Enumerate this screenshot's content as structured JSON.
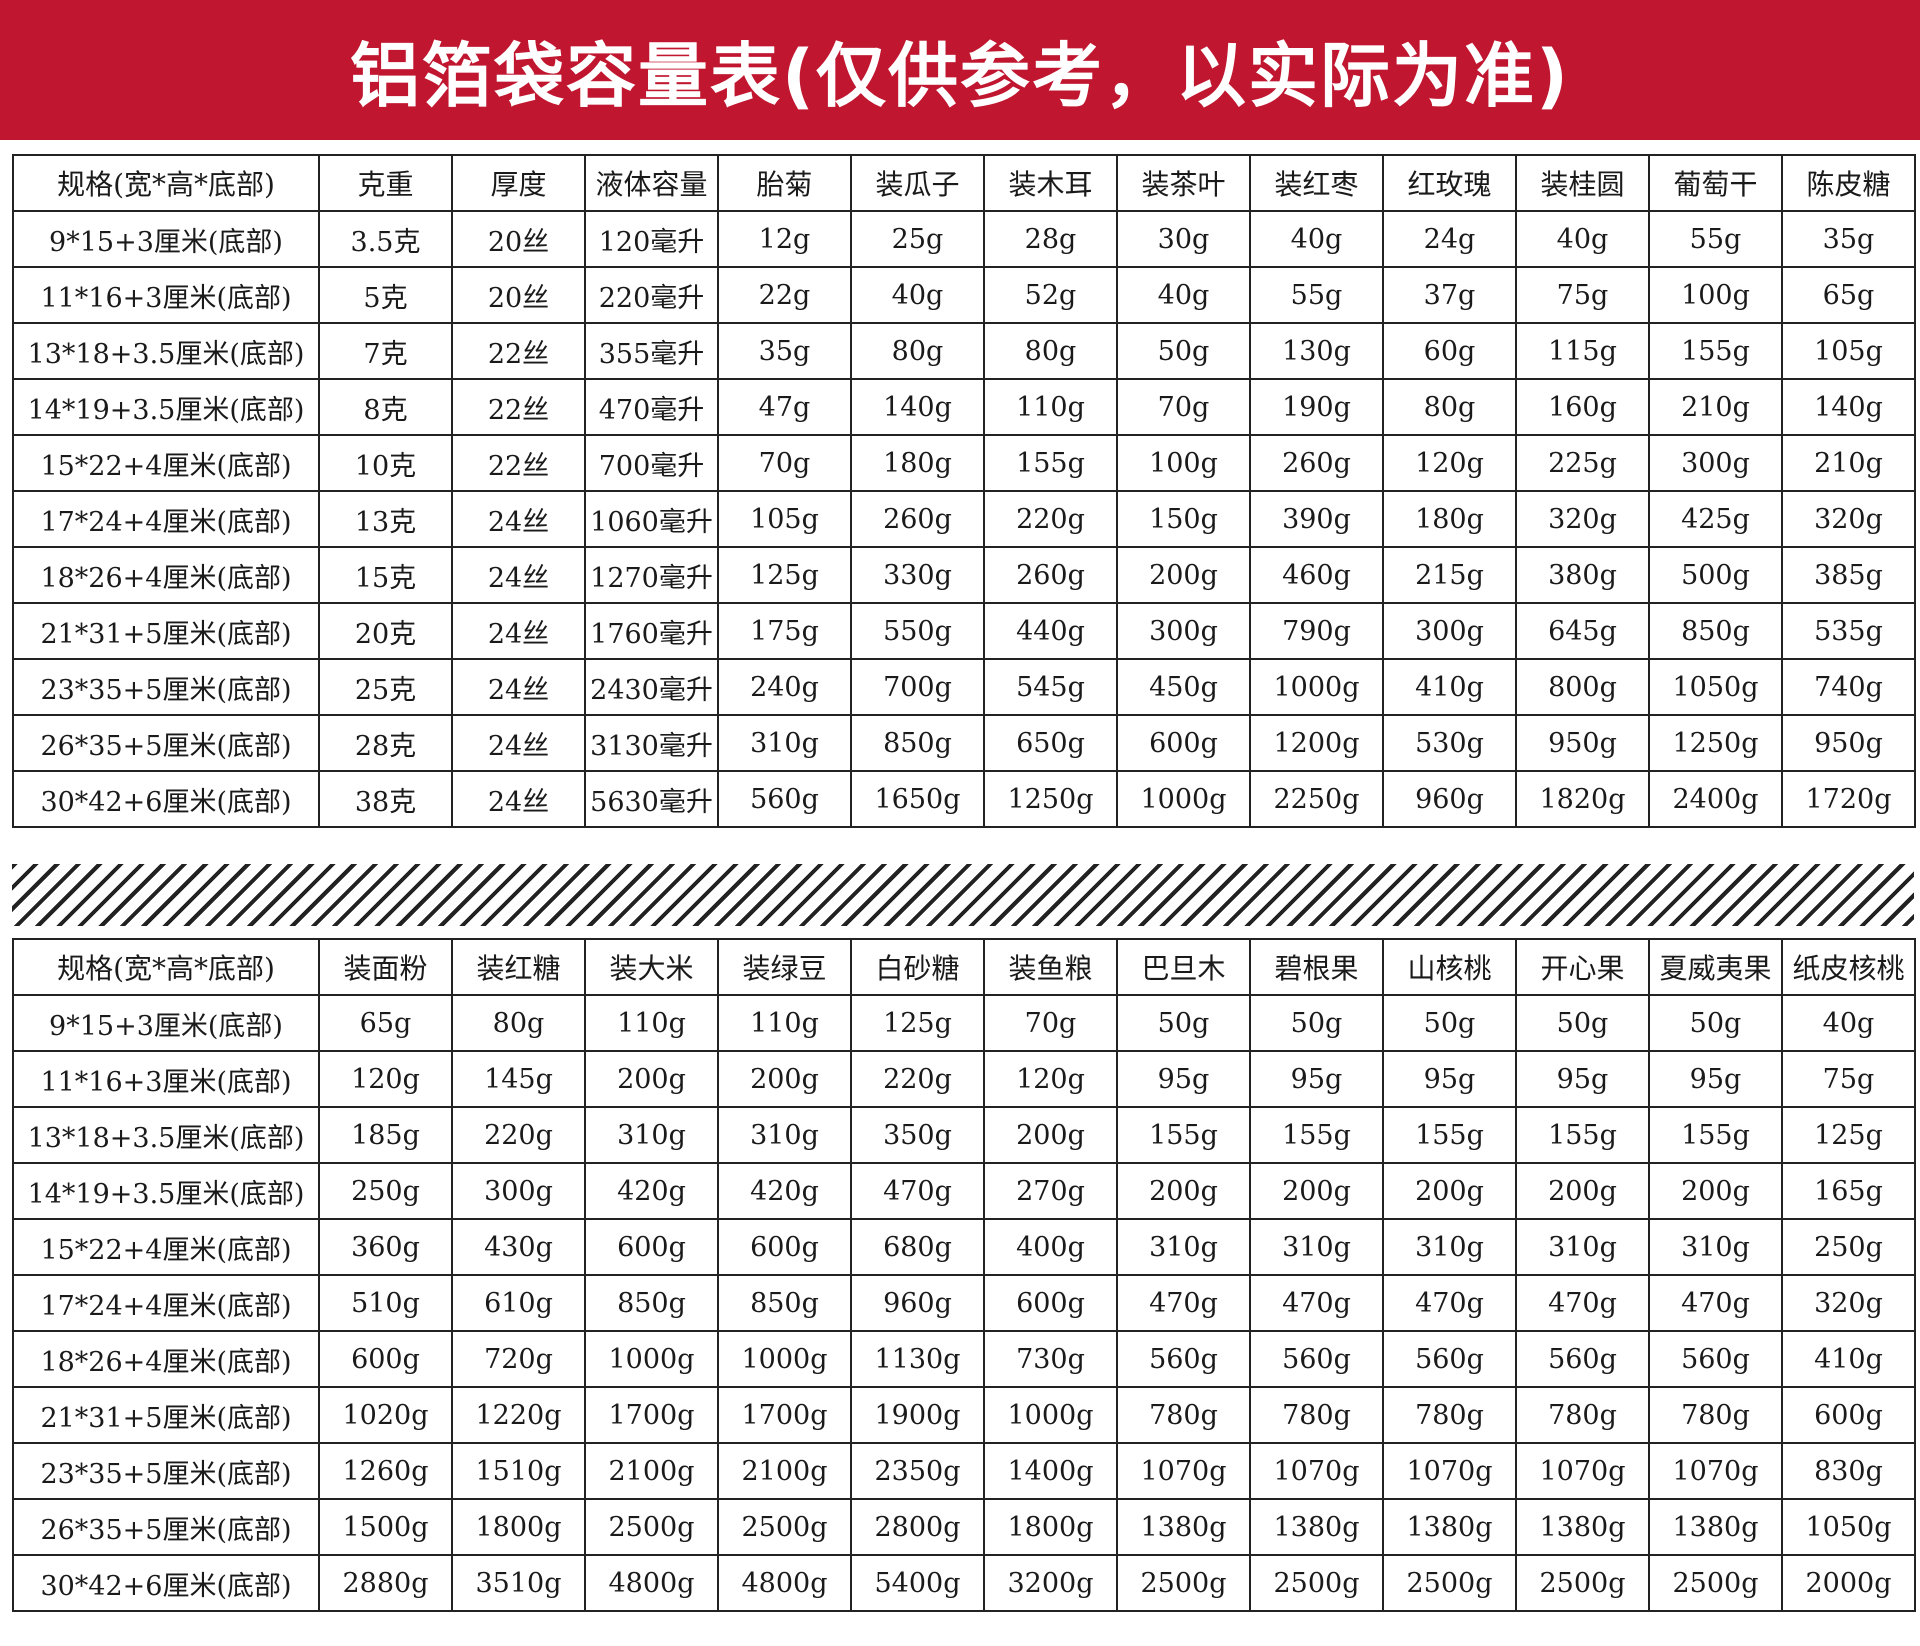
{
  "title": "铝箔袋容量表(仅供参考，以实际为准)",
  "colors": {
    "banner": "#c0162f",
    "title_text": "#ffffff",
    "grid": "#222222"
  },
  "table1": {
    "header": [
      "规格(宽*高*底部)",
      "克重",
      "厚度",
      "液体容量",
      "胎菊",
      "装瓜子",
      "装木耳",
      "装茶叶",
      "装红枣",
      "红玫瑰",
      "装桂圆",
      "葡萄干",
      "陈皮糖"
    ],
    "rows": [
      [
        "9*15+3厘米(底部)",
        "3.5克",
        "20丝",
        "120毫升",
        "12g",
        "25g",
        "28g",
        "30g",
        "40g",
        "24g",
        "40g",
        "55g",
        "35g"
      ],
      [
        "11*16+3厘米(底部)",
        "5克",
        "20丝",
        "220毫升",
        "22g",
        "40g",
        "52g",
        "40g",
        "55g",
        "37g",
        "75g",
        "100g",
        "65g"
      ],
      [
        "13*18+3.5厘米(底部)",
        "7克",
        "22丝",
        "355毫升",
        "35g",
        "80g",
        "80g",
        "50g",
        "130g",
        "60g",
        "115g",
        "155g",
        "105g"
      ],
      [
        "14*19+3.5厘米(底部)",
        "8克",
        "22丝",
        "470毫升",
        "47g",
        "140g",
        "110g",
        "70g",
        "190g",
        "80g",
        "160g",
        "210g",
        "140g"
      ],
      [
        "15*22+4厘米(底部)",
        "10克",
        "22丝",
        "700毫升",
        "70g",
        "180g",
        "155g",
        "100g",
        "260g",
        "120g",
        "225g",
        "300g",
        "210g"
      ],
      [
        "17*24+4厘米(底部)",
        "13克",
        "24丝",
        "1060毫升",
        "105g",
        "260g",
        "220g",
        "150g",
        "390g",
        "180g",
        "320g",
        "425g",
        "320g"
      ],
      [
        "18*26+4厘米(底部)",
        "15克",
        "24丝",
        "1270毫升",
        "125g",
        "330g",
        "260g",
        "200g",
        "460g",
        "215g",
        "380g",
        "500g",
        "385g"
      ],
      [
        "21*31+5厘米(底部)",
        "20克",
        "24丝",
        "1760毫升",
        "175g",
        "550g",
        "440g",
        "300g",
        "790g",
        "300g",
        "645g",
        "850g",
        "535g"
      ],
      [
        "23*35+5厘米(底部)",
        "25克",
        "24丝",
        "2430毫升",
        "240g",
        "700g",
        "545g",
        "450g",
        "1000g",
        "410g",
        "800g",
        "1050g",
        "740g"
      ],
      [
        "26*35+5厘米(底部)",
        "28克",
        "24丝",
        "3130毫升",
        "310g",
        "850g",
        "650g",
        "600g",
        "1200g",
        "530g",
        "950g",
        "1250g",
        "950g"
      ],
      [
        "30*42+6厘米(底部)",
        "38克",
        "24丝",
        "5630毫升",
        "560g",
        "1650g",
        "1250g",
        "1000g",
        "2250g",
        "960g",
        "1820g",
        "2400g",
        "1720g"
      ]
    ]
  },
  "table2": {
    "header": [
      "规格(宽*高*底部)",
      "装面粉",
      "装红糖",
      "装大米",
      "装绿豆",
      "白砂糖",
      "装鱼粮",
      "巴旦木",
      "碧根果",
      "山核桃",
      "开心果",
      "夏威夷果",
      "纸皮核桃"
    ],
    "rows": [
      [
        "9*15+3厘米(底部)",
        "65g",
        "80g",
        "110g",
        "110g",
        "125g",
        "70g",
        "50g",
        "50g",
        "50g",
        "50g",
        "50g",
        "40g"
      ],
      [
        "11*16+3厘米(底部)",
        "120g",
        "145g",
        "200g",
        "200g",
        "220g",
        "120g",
        "95g",
        "95g",
        "95g",
        "95g",
        "95g",
        "75g"
      ],
      [
        "13*18+3.5厘米(底部)",
        "185g",
        "220g",
        "310g",
        "310g",
        "350g",
        "200g",
        "155g",
        "155g",
        "155g",
        "155g",
        "155g",
        "125g"
      ],
      [
        "14*19+3.5厘米(底部)",
        "250g",
        "300g",
        "420g",
        "420g",
        "470g",
        "270g",
        "200g",
        "200g",
        "200g",
        "200g",
        "200g",
        "165g"
      ],
      [
        "15*22+4厘米(底部)",
        "360g",
        "430g",
        "600g",
        "600g",
        "680g",
        "400g",
        "310g",
        "310g",
        "310g",
        "310g",
        "310g",
        "250g"
      ],
      [
        "17*24+4厘米(底部)",
        "510g",
        "610g",
        "850g",
        "850g",
        "960g",
        "600g",
        "470g",
        "470g",
        "470g",
        "470g",
        "470g",
        "320g"
      ],
      [
        "18*26+4厘米(底部)",
        "600g",
        "720g",
        "1000g",
        "1000g",
        "1130g",
        "730g",
        "560g",
        "560g",
        "560g",
        "560g",
        "560g",
        "410g"
      ],
      [
        "21*31+5厘米(底部)",
        "1020g",
        "1220g",
        "1700g",
        "1700g",
        "1900g",
        "1000g",
        "780g",
        "780g",
        "780g",
        "780g",
        "780g",
        "600g"
      ],
      [
        "23*35+5厘米(底部)",
        "1260g",
        "1510g",
        "2100g",
        "2100g",
        "2350g",
        "1400g",
        "1070g",
        "1070g",
        "1070g",
        "1070g",
        "1070g",
        "830g"
      ],
      [
        "26*35+5厘米(底部)",
        "1500g",
        "1800g",
        "2500g",
        "2500g",
        "2800g",
        "1800g",
        "1380g",
        "1380g",
        "1380g",
        "1380g",
        "1380g",
        "1050g"
      ],
      [
        "30*42+6厘米(底部)",
        "2880g",
        "3510g",
        "4800g",
        "4800g",
        "5400g",
        "3200g",
        "2500g",
        "2500g",
        "2500g",
        "2500g",
        "2500g",
        "2000g"
      ]
    ]
  }
}
